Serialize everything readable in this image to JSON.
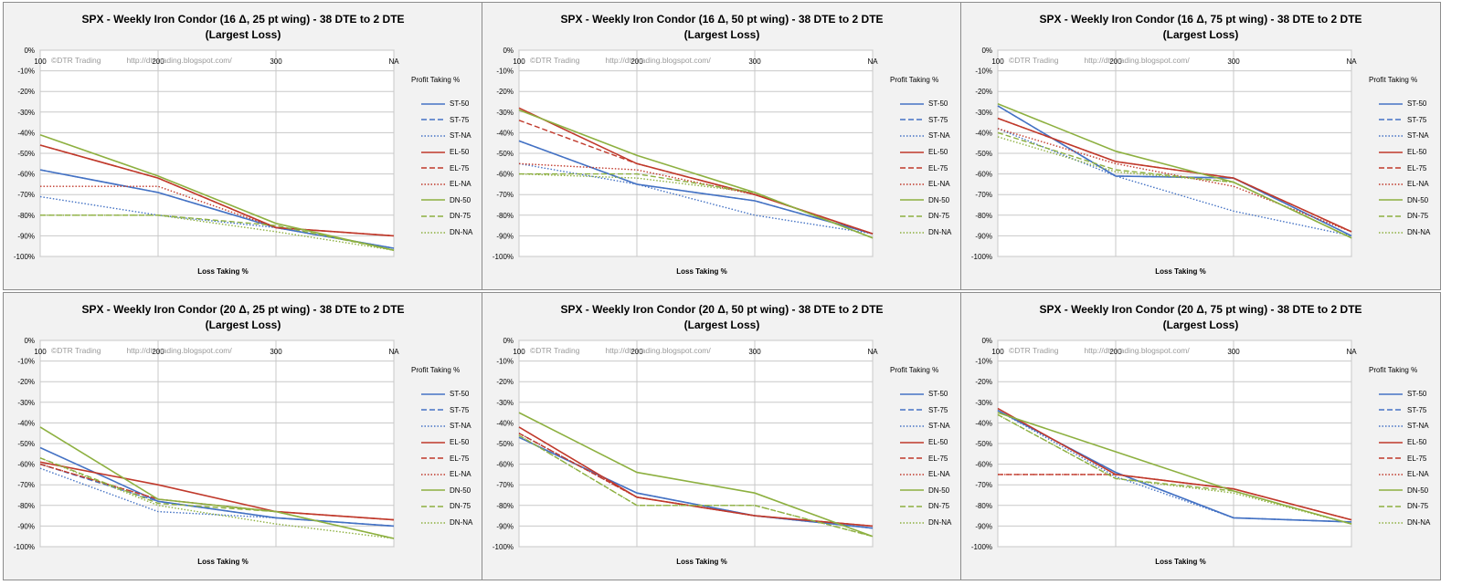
{
  "series_styles": [
    {
      "name": "ST-50",
      "color": "#4472c4",
      "dash": "solid"
    },
    {
      "name": "ST-75",
      "color": "#4472c4",
      "dash": "dash"
    },
    {
      "name": "ST-NA",
      "color": "#4472c4",
      "dash": "dot"
    },
    {
      "name": "EL-50",
      "color": "#c0392b",
      "dash": "solid"
    },
    {
      "name": "EL-75",
      "color": "#c0392b",
      "dash": "dash"
    },
    {
      "name": "EL-NA",
      "color": "#c0392b",
      "dash": "dot"
    },
    {
      "name": "DN-50",
      "color": "#8db040",
      "dash": "solid"
    },
    {
      "name": "DN-75",
      "color": "#8db040",
      "dash": "dash"
    },
    {
      "name": "DN-NA",
      "color": "#8db040",
      "dash": "dot"
    }
  ],
  "chart_data": [
    {
      "type": "line",
      "title_line1": "SPX - Weekly Iron Condor (16 Δ, 25 pt wing) - 38 DTE to 2 DTE",
      "title_line2": "(Largest Loss)",
      "xlabel": "Loss Taking %",
      "legend_title": "Profit Taking %",
      "watermark_left": "©DTR Trading",
      "watermark_right": "http://dtr-trading.blogspot.com/",
      "categories": [
        "100",
        "200",
        "300",
        "NA"
      ],
      "ylim": [
        -100,
        0
      ],
      "yticks": [
        "0%",
        "-10%",
        "-20%",
        "-30%",
        "-40%",
        "-50%",
        "-60%",
        "-70%",
        "-80%",
        "-90%",
        "-100%"
      ],
      "series": [
        {
          "name": "ST-50",
          "values": [
            -58,
            -69,
            -86,
            -96
          ]
        },
        {
          "name": "ST-75",
          "values": [
            -58,
            -69,
            -86,
            -96
          ]
        },
        {
          "name": "ST-NA",
          "values": [
            -71,
            -80,
            -86,
            -96
          ]
        },
        {
          "name": "EL-50",
          "values": [
            -46,
            -62,
            -86,
            -90
          ]
        },
        {
          "name": "EL-75",
          "values": [
            -46,
            -62,
            -86,
            -90
          ]
        },
        {
          "name": "EL-NA",
          "values": [
            -66,
            -66,
            -86,
            -90
          ]
        },
        {
          "name": "DN-50",
          "values": [
            -41,
            -61,
            -84,
            -97
          ]
        },
        {
          "name": "DN-75",
          "values": [
            -80,
            -80,
            -85,
            -97
          ]
        },
        {
          "name": "DN-NA",
          "values": [
            -80,
            -80,
            -88,
            -97
          ]
        }
      ]
    },
    {
      "type": "line",
      "title_line1": "SPX - Weekly Iron Condor (16 Δ, 50 pt wing) - 38 DTE to 2 DTE",
      "title_line2": "(Largest Loss)",
      "xlabel": "Loss Taking %",
      "legend_title": "Profit Taking %",
      "watermark_left": "©DTR Trading",
      "watermark_right": "http://dtr-trading.blogspot.com/",
      "categories": [
        "100",
        "200",
        "300",
        "NA"
      ],
      "ylim": [
        -100,
        0
      ],
      "yticks": [
        "0%",
        "-10%",
        "-20%",
        "-30%",
        "-40%",
        "-50%",
        "-60%",
        "-70%",
        "-80%",
        "-90%",
        "-100%"
      ],
      "series": [
        {
          "name": "ST-50",
          "values": [
            -44,
            -65,
            -73,
            -89
          ]
        },
        {
          "name": "ST-75",
          "values": [
            -44,
            -65,
            -73,
            -89
          ]
        },
        {
          "name": "ST-NA",
          "values": [
            -55,
            -65,
            -80,
            -89
          ]
        },
        {
          "name": "EL-50",
          "values": [
            -28,
            -55,
            -70,
            -89
          ]
        },
        {
          "name": "EL-75",
          "values": [
            -34,
            -55,
            -70,
            -89
          ]
        },
        {
          "name": "EL-NA",
          "values": [
            -55,
            -58,
            -70,
            -89
          ]
        },
        {
          "name": "DN-50",
          "values": [
            -29,
            -51,
            -69,
            -91
          ]
        },
        {
          "name": "DN-75",
          "values": [
            -60,
            -60,
            -69,
            -91
          ]
        },
        {
          "name": "DN-NA",
          "values": [
            -60,
            -62,
            -69,
            -91
          ]
        }
      ]
    },
    {
      "type": "line",
      "title_line1": "SPX - Weekly Iron Condor (16 Δ, 75 pt wing) - 38 DTE to 2 DTE",
      "title_line2": "(Largest Loss)",
      "xlabel": "Loss Taking %",
      "legend_title": "Profit Taking %",
      "watermark_left": "©DTR Trading",
      "watermark_right": "http://dtr-trading.blogspot.com/",
      "categories": [
        "100",
        "200",
        "300",
        "NA"
      ],
      "ylim": [
        -100,
        0
      ],
      "yticks": [
        "0%",
        "-10%",
        "-20%",
        "-30%",
        "-40%",
        "-50%",
        "-60%",
        "-70%",
        "-80%",
        "-90%",
        "-100%"
      ],
      "series": [
        {
          "name": "ST-50",
          "values": [
            -27,
            -61,
            -62,
            -90
          ]
        },
        {
          "name": "ST-75",
          "values": [
            -27,
            -61,
            -62,
            -90
          ]
        },
        {
          "name": "ST-NA",
          "values": [
            -38,
            -61,
            -78,
            -90
          ]
        },
        {
          "name": "EL-50",
          "values": [
            -33,
            -54,
            -62,
            -88
          ]
        },
        {
          "name": "EL-75",
          "values": [
            -33,
            -54,
            -62,
            -88
          ]
        },
        {
          "name": "EL-NA",
          "values": [
            -38,
            -55,
            -66,
            -88
          ]
        },
        {
          "name": "DN-50",
          "values": [
            -26,
            -49,
            -64,
            -91
          ]
        },
        {
          "name": "DN-75",
          "values": [
            -40,
            -58,
            -64,
            -91
          ]
        },
        {
          "name": "DN-NA",
          "values": [
            -42,
            -59,
            -64,
            -91
          ]
        }
      ]
    },
    {
      "type": "line",
      "title_line1": "SPX - Weekly Iron Condor (20 Δ, 25 pt wing) - 38 DTE to 2 DTE",
      "title_line2": "(Largest Loss)",
      "xlabel": "Loss Taking %",
      "legend_title": "Profit Taking %",
      "watermark_left": "©DTR Trading",
      "watermark_right": "http://dtr-trading.blogspot.com/",
      "categories": [
        "100",
        "200",
        "300",
        "NA"
      ],
      "ylim": [
        -100,
        0
      ],
      "yticks": [
        "0%",
        "-10%",
        "-20%",
        "-30%",
        "-40%",
        "-50%",
        "-60%",
        "-70%",
        "-80%",
        "-90%",
        "-100%"
      ],
      "series": [
        {
          "name": "ST-50",
          "values": [
            -52,
            -78,
            -86,
            -90
          ]
        },
        {
          "name": "ST-75",
          "values": [
            -60,
            -78,
            -86,
            -90
          ]
        },
        {
          "name": "ST-NA",
          "values": [
            -62,
            -83,
            -86,
            -90
          ]
        },
        {
          "name": "EL-50",
          "values": [
            -59,
            -70,
            -83,
            -87
          ]
        },
        {
          "name": "EL-75",
          "values": [
            -60,
            -77,
            -83,
            -87
          ]
        },
        {
          "name": "EL-NA",
          "values": [
            -60,
            -77,
            -83,
            -87
          ]
        },
        {
          "name": "DN-50",
          "values": [
            -42,
            -77,
            -83,
            -96
          ]
        },
        {
          "name": "DN-75",
          "values": [
            -57,
            -79,
            -83,
            -96
          ]
        },
        {
          "name": "DN-NA",
          "values": [
            -57,
            -80,
            -89,
            -96
          ]
        }
      ]
    },
    {
      "type": "line",
      "title_line1": "SPX - Weekly Iron Condor (20 Δ, 50 pt wing) - 38 DTE to 2 DTE",
      "title_line2": "(Largest Loss)",
      "xlabel": "Loss Taking %",
      "legend_title": "Profit Taking %",
      "watermark_left": "©DTR Trading",
      "watermark_right": "http://dtr-trading.blogspot.com/",
      "categories": [
        "100",
        "200",
        "300",
        "NA"
      ],
      "ylim": [
        -100,
        0
      ],
      "yticks": [
        "0%",
        "-10%",
        "-20%",
        "-30%",
        "-40%",
        "-50%",
        "-60%",
        "-70%",
        "-80%",
        "-90%",
        "-100%"
      ],
      "series": [
        {
          "name": "ST-50",
          "values": [
            -47,
            -74,
            -85,
            -91
          ]
        },
        {
          "name": "ST-75",
          "values": [
            -47,
            -74,
            -85,
            -91
          ]
        },
        {
          "name": "ST-NA",
          "values": [
            -45,
            -76,
            -85,
            -91
          ]
        },
        {
          "name": "EL-50",
          "values": [
            -42,
            -76,
            -85,
            -90
          ]
        },
        {
          "name": "EL-75",
          "values": [
            -45,
            -76,
            -85,
            -90
          ]
        },
        {
          "name": "EL-NA",
          "values": [
            -45,
            -76,
            -85,
            -90
          ]
        },
        {
          "name": "DN-50",
          "values": [
            -35,
            -64,
            -74,
            -95
          ]
        },
        {
          "name": "DN-75",
          "values": [
            -46,
            -80,
            -80,
            -95
          ]
        },
        {
          "name": "DN-NA",
          "values": [
            -46,
            -80,
            -80,
            -95
          ]
        }
      ]
    },
    {
      "type": "line",
      "title_line1": "SPX - Weekly Iron Condor (20 Δ, 75 pt wing) - 38 DTE to 2 DTE",
      "title_line2": "(Largest Loss)",
      "xlabel": "Loss Taking %",
      "legend_title": "Profit Taking %",
      "watermark_left": "©DTR Trading",
      "watermark_right": "http://dtr-trading.blogspot.com/",
      "categories": [
        "100",
        "200",
        "300",
        "NA"
      ],
      "ylim": [
        -100,
        0
      ],
      "yticks": [
        "0%",
        "-10%",
        "-20%",
        "-30%",
        "-40%",
        "-50%",
        "-60%",
        "-70%",
        "-80%",
        "-90%",
        "-100%"
      ],
      "series": [
        {
          "name": "ST-50",
          "values": [
            -34,
            -64,
            -86,
            -88
          ]
        },
        {
          "name": "ST-75",
          "values": [
            -34,
            -64,
            -86,
            -88
          ]
        },
        {
          "name": "ST-NA",
          "values": [
            -34,
            -66,
            -86,
            -88
          ]
        },
        {
          "name": "EL-50",
          "values": [
            -33,
            -65,
            -72,
            -87
          ]
        },
        {
          "name": "EL-75",
          "values": [
            -65,
            -65,
            -72,
            -87
          ]
        },
        {
          "name": "EL-NA",
          "values": [
            -65,
            -65,
            -72,
            -87
          ]
        },
        {
          "name": "DN-50",
          "values": [
            -35,
            -54,
            -73,
            -89
          ]
        },
        {
          "name": "DN-75",
          "values": [
            -36,
            -67,
            -73,
            -89
          ]
        },
        {
          "name": "DN-NA",
          "values": [
            -36,
            -67,
            -74,
            -89
          ]
        }
      ]
    }
  ]
}
